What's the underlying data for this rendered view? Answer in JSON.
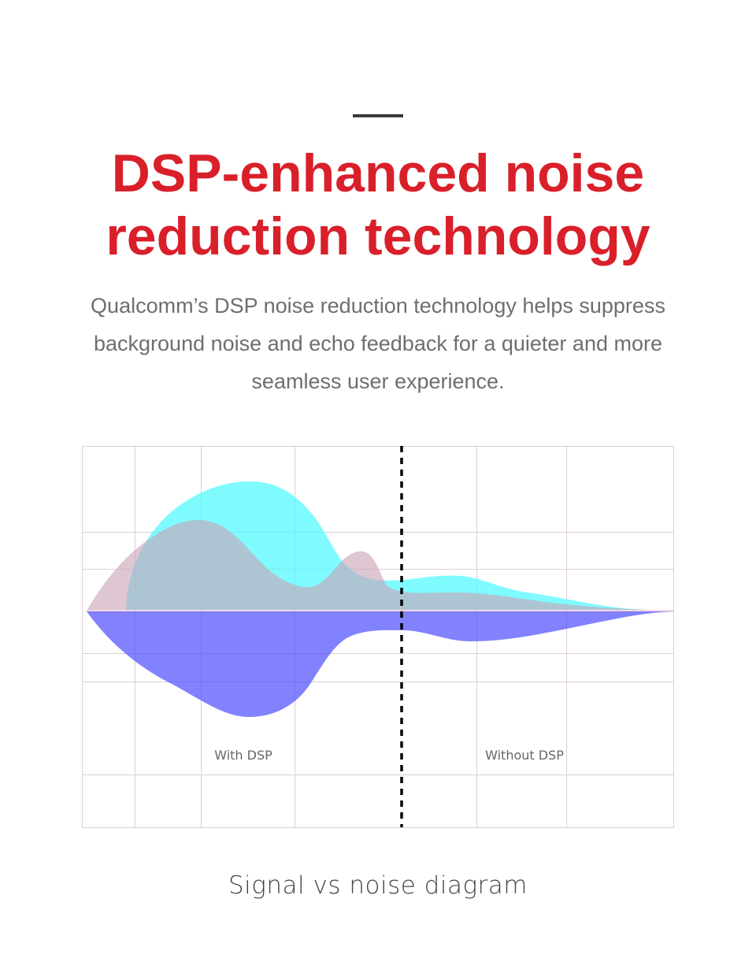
{
  "header": {
    "title": "DSP-enhanced noise reduction technology",
    "description": "Qualcomm’s DSP noise reduction technology helps suppress background noise and echo feedback for a quieter and more seamless user experience."
  },
  "diagram": {
    "label_left": "With DSP",
    "label_right": "Without DSP",
    "caption": "Signal vs noise diagram",
    "colors": {
      "signal_cyan": "#4dfaff",
      "signal_pink": "#c9a3b8",
      "noise_blue": "#4747ff",
      "grid": "#dccfd6",
      "divider": "#000000",
      "title_red": "#d9202a"
    }
  }
}
